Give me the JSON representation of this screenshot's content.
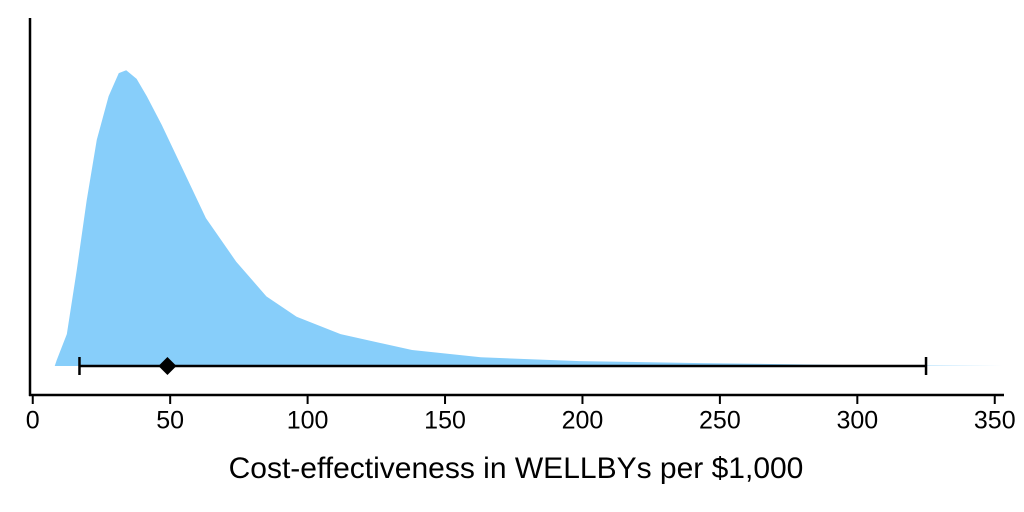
{
  "chart_data": {
    "type": "area",
    "x_label": "Cost-effectiveness in WELLBYs per $1,000",
    "x": [
      8,
      8.7,
      12.4,
      16,
      19.6,
      23.3,
      27.6,
      31.3,
      34,
      37.8,
      41.5,
      47,
      54,
      63,
      74,
      85,
      96,
      112,
      138,
      163,
      199,
      243,
      298,
      353
    ],
    "values": [
      0,
      0.02,
      0.11,
      0.33,
      0.57,
      0.78,
      0.93,
      1.01,
      1.02,
      0.99,
      0.93,
      0.83,
      0.69,
      0.51,
      0.36,
      0.24,
      0.17,
      0.11,
      0.055,
      0.03,
      0.017,
      0.01,
      0.003,
      0
    ],
    "color": "#87cefa",
    "interval": {
      "low": 17,
      "estimate": 49,
      "high": 325,
      "color": "#000000"
    },
    "xlim": [
      -1,
      353
    ],
    "xticks": [
      0,
      50,
      100,
      150,
      200,
      250,
      300,
      350
    ],
    "ylim": [
      -0.1,
      1.2
    ]
  }
}
